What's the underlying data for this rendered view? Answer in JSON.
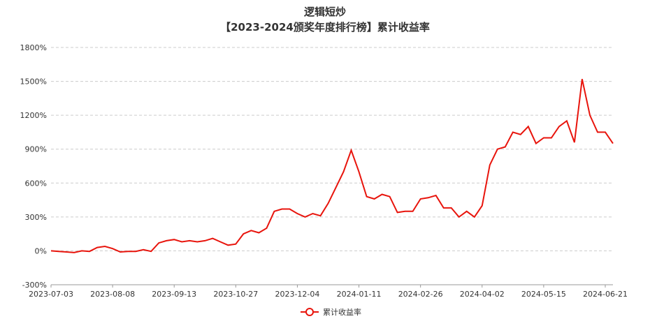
{
  "chart_data": {
    "type": "line",
    "title": "逻辑短炒",
    "subtitle": "【2023-2024颁奖年度排行榜】累计收益率",
    "categories": [
      "2023-07-03",
      null,
      null,
      null,
      null,
      null,
      null,
      null,
      "2023-08-08",
      null,
      null,
      null,
      null,
      null,
      null,
      null,
      "2023-09-13",
      null,
      null,
      null,
      null,
      null,
      null,
      null,
      "2023-10-27",
      null,
      null,
      null,
      null,
      null,
      null,
      null,
      "2023-12-04",
      null,
      null,
      null,
      null,
      null,
      null,
      null,
      "2024-01-11",
      null,
      null,
      null,
      null,
      null,
      null,
      null,
      "2024-02-26",
      null,
      null,
      null,
      null,
      null,
      null,
      null,
      "2024-04-02",
      null,
      null,
      null,
      null,
      null,
      null,
      null,
      "2024-05-15",
      null,
      null,
      null,
      null,
      null,
      null,
      null,
      "2024-06-21",
      null
    ],
    "series": [
      {
        "name": "累计收益率",
        "color": "#e8140c",
        "values": [
          0,
          -5,
          -10,
          -15,
          0,
          -5,
          30,
          40,
          20,
          -10,
          -5,
          -5,
          10,
          -5,
          70,
          90,
          100,
          80,
          90,
          80,
          90,
          110,
          80,
          50,
          60,
          150,
          180,
          160,
          200,
          350,
          370,
          370,
          330,
          300,
          330,
          310,
          420,
          560,
          700,
          890,
          700,
          480,
          460,
          500,
          480,
          340,
          350,
          350,
          460,
          470,
          490,
          380,
          380,
          300,
          350,
          300,
          400,
          760,
          900,
          920,
          1050,
          1030,
          1100,
          950,
          1000,
          1000,
          1100,
          1150,
          960,
          1520,
          1200,
          1050,
          1050,
          950
        ]
      }
    ],
    "ylim": [
      -300,
      1800
    ],
    "yticks": [
      {
        "value": -300,
        "label": "-300%"
      },
      {
        "value": 0,
        "label": "0%"
      },
      {
        "value": 300,
        "label": "300%"
      },
      {
        "value": 600,
        "label": "600%"
      },
      {
        "value": 900,
        "label": "900%"
      },
      {
        "value": 1200,
        "label": "1200%"
      },
      {
        "value": 1500,
        "label": "1500%"
      },
      {
        "value": 1800,
        "label": "1800%"
      }
    ],
    "grid": true
  }
}
